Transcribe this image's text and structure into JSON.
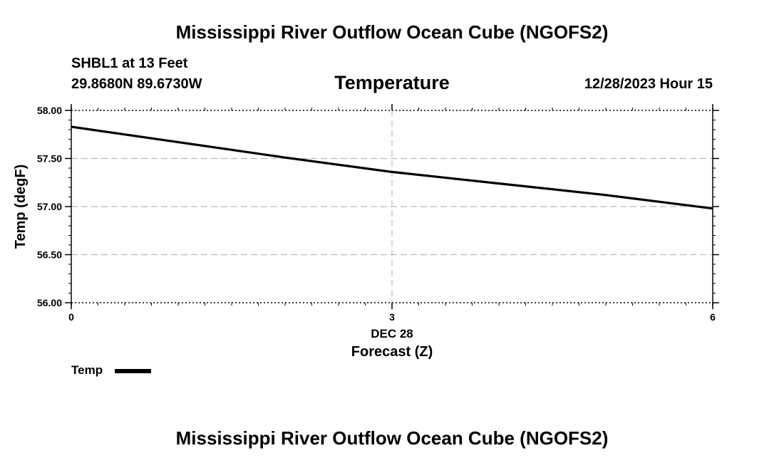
{
  "header": {
    "title": "Mississippi River Outflow Ocean Cube (NGOFS2)",
    "station": "SHBL1 at 13 Feet",
    "coordinates": "29.8680N  89.6730W",
    "parameter": "Temperature",
    "datetime": "12/28/2023 Hour 15"
  },
  "footer": {
    "title": "Mississippi River Outflow Ocean Cube (NGOFS2)"
  },
  "chart_data": {
    "type": "line",
    "title": "Temperature",
    "xlabel": "Forecast (Z)",
    "ylabel": "Temp (degF)",
    "x_date_label": "DEC 28",
    "xlim": [
      0,
      6
    ],
    "ylim": [
      56.0,
      58.0
    ],
    "x_ticks": [
      0,
      3,
      6
    ],
    "x_tick_labels": [
      "0",
      "3",
      "6"
    ],
    "y_ticks": [
      56.0,
      56.5,
      57.0,
      57.5,
      58.0
    ],
    "y_tick_labels": [
      "56.00",
      "56.50",
      "57.00",
      "57.50",
      "58.00"
    ],
    "grid": true,
    "legend_position": "bottom-left",
    "series": [
      {
        "name": "Temp",
        "color": "#000000",
        "x": [
          0,
          1,
          2,
          3,
          4,
          5,
          6
        ],
        "values": [
          57.83,
          57.67,
          57.51,
          57.36,
          57.24,
          57.12,
          56.98
        ]
      }
    ]
  }
}
